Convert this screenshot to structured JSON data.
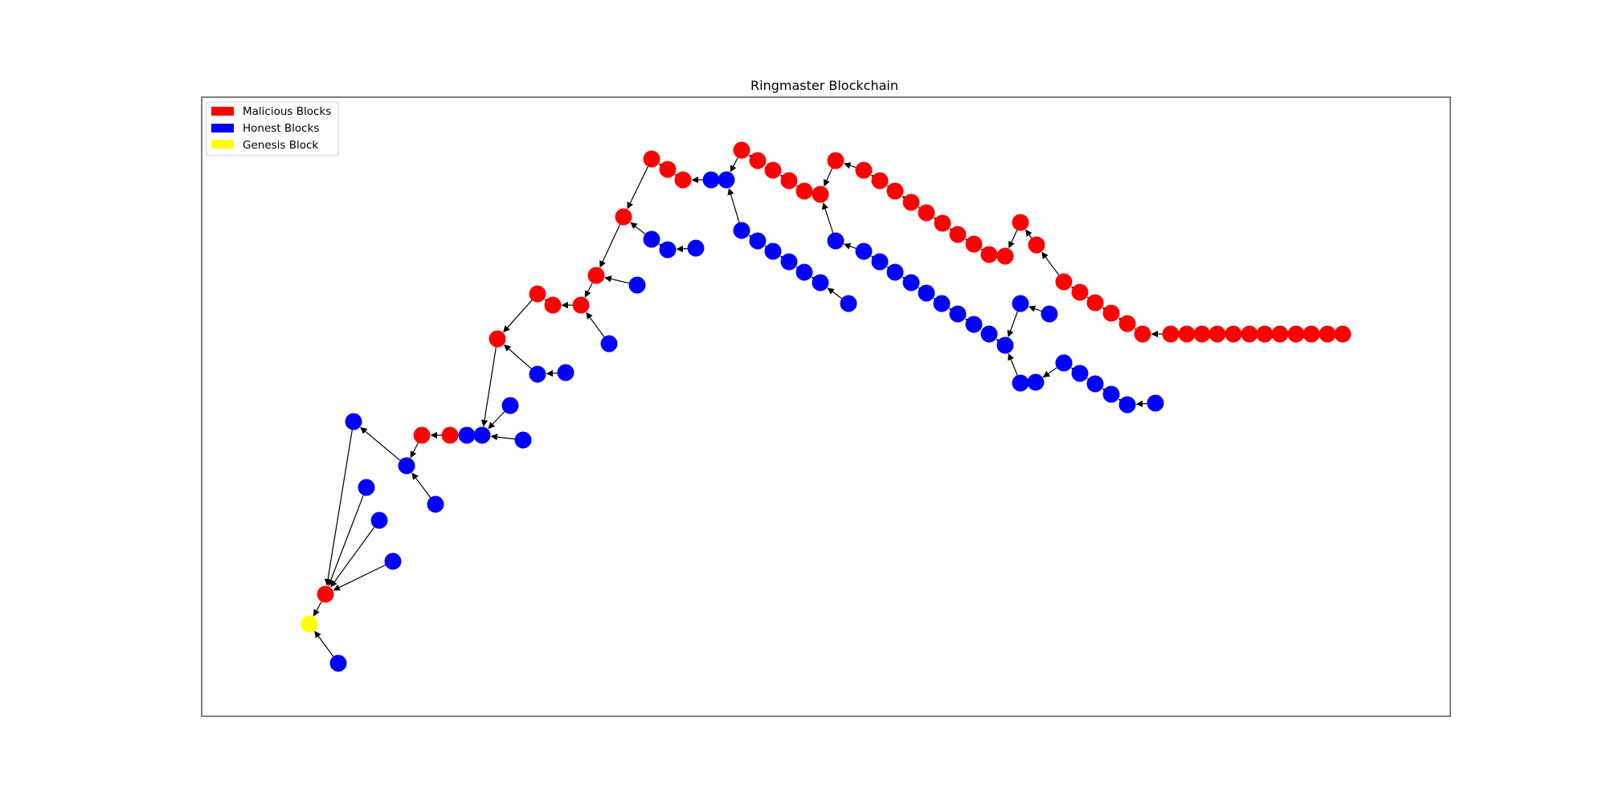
{
  "title": "Ringmaster Blockchain",
  "colors": {
    "malicious": "#ff0000",
    "honest": "#0000ff",
    "genesis": "#ffff00",
    "edge": "#000000",
    "axes": "#000000",
    "legend_border": "#cccccc"
  },
  "legend": {
    "placement": "upper-left",
    "items": [
      {
        "label": "Malicious Blocks",
        "type": "malicious"
      },
      {
        "label": "Honest Blocks",
        "type": "honest"
      },
      {
        "label": "Genesis Block",
        "type": "genesis"
      }
    ]
  },
  "graph": {
    "nodes": [
      {
        "id": "G",
        "type": "genesis"
      },
      {
        "id": "H0",
        "type": "honest"
      },
      {
        "id": "M0",
        "type": "malicious"
      },
      {
        "id": "H1",
        "type": "honest"
      },
      {
        "id": "H2",
        "type": "honest"
      },
      {
        "id": "H3",
        "type": "honest"
      },
      {
        "id": "H4",
        "type": "honest"
      },
      {
        "id": "H5",
        "type": "honest"
      },
      {
        "id": "H6",
        "type": "honest"
      },
      {
        "id": "M1",
        "type": "malicious"
      },
      {
        "id": "M2",
        "type": "malicious"
      },
      {
        "id": "H7",
        "type": "honest"
      },
      {
        "id": "H8",
        "type": "honest"
      },
      {
        "id": "H9",
        "type": "honest"
      },
      {
        "id": "H10",
        "type": "honest"
      },
      {
        "id": "M3",
        "type": "malicious"
      },
      {
        "id": "H11",
        "type": "honest"
      },
      {
        "id": "H12",
        "type": "honest"
      },
      {
        "id": "M4",
        "type": "malicious"
      },
      {
        "id": "M5",
        "type": "malicious"
      },
      {
        "id": "M6",
        "type": "malicious"
      },
      {
        "id": "H13",
        "type": "honest"
      },
      {
        "id": "M7",
        "type": "malicious"
      },
      {
        "id": "H14",
        "type": "honest"
      },
      {
        "id": "M8",
        "type": "malicious"
      },
      {
        "id": "H15",
        "type": "honest"
      },
      {
        "id": "H16",
        "type": "honest"
      },
      {
        "id": "H17",
        "type": "honest"
      },
      {
        "id": "M9",
        "type": "malicious"
      },
      {
        "id": "M10",
        "type": "malicious"
      },
      {
        "id": "M11",
        "type": "malicious"
      },
      {
        "id": "H18",
        "type": "honest"
      },
      {
        "id": "H19",
        "type": "honest"
      },
      {
        "id": "M12",
        "type": "malicious"
      },
      {
        "id": "M13",
        "type": "malicious"
      },
      {
        "id": "M14",
        "type": "malicious"
      },
      {
        "id": "M15",
        "type": "malicious"
      },
      {
        "id": "M16",
        "type": "malicious"
      },
      {
        "id": "M17",
        "type": "malicious"
      },
      {
        "id": "M18",
        "type": "malicious"
      },
      {
        "id": "M19",
        "type": "malicious"
      },
      {
        "id": "M20",
        "type": "malicious"
      },
      {
        "id": "M21",
        "type": "malicious"
      },
      {
        "id": "M22",
        "type": "malicious"
      },
      {
        "id": "M23",
        "type": "malicious"
      },
      {
        "id": "M24",
        "type": "malicious"
      },
      {
        "id": "M25",
        "type": "malicious"
      },
      {
        "id": "M26",
        "type": "malicious"
      },
      {
        "id": "M27",
        "type": "malicious"
      },
      {
        "id": "M28",
        "type": "malicious"
      },
      {
        "id": "M29",
        "type": "malicious"
      },
      {
        "id": "M30",
        "type": "malicious"
      },
      {
        "id": "M31",
        "type": "malicious"
      },
      {
        "id": "M32",
        "type": "malicious"
      },
      {
        "id": "M33",
        "type": "malicious"
      },
      {
        "id": "M34",
        "type": "malicious"
      },
      {
        "id": "M35",
        "type": "malicious"
      },
      {
        "id": "M36",
        "type": "malicious"
      },
      {
        "id": "M37",
        "type": "malicious"
      },
      {
        "id": "M38",
        "type": "malicious"
      },
      {
        "id": "M39",
        "type": "malicious"
      },
      {
        "id": "M40",
        "type": "malicious"
      },
      {
        "id": "M41",
        "type": "malicious"
      },
      {
        "id": "M42",
        "type": "malicious"
      },
      {
        "id": "M43",
        "type": "malicious"
      },
      {
        "id": "M44",
        "type": "malicious"
      },
      {
        "id": "M45",
        "type": "malicious"
      },
      {
        "id": "M46",
        "type": "malicious"
      },
      {
        "id": "M47",
        "type": "malicious"
      },
      {
        "id": "M48",
        "type": "malicious"
      },
      {
        "id": "H20",
        "type": "honest"
      },
      {
        "id": "H21",
        "type": "honest"
      },
      {
        "id": "H22",
        "type": "honest"
      },
      {
        "id": "H23",
        "type": "honest"
      },
      {
        "id": "H24",
        "type": "honest"
      },
      {
        "id": "H25",
        "type": "honest"
      },
      {
        "id": "H26",
        "type": "honest"
      },
      {
        "id": "H27",
        "type": "honest"
      },
      {
        "id": "H28",
        "type": "honest"
      },
      {
        "id": "H29",
        "type": "honest"
      },
      {
        "id": "H30",
        "type": "honest"
      },
      {
        "id": "H31",
        "type": "honest"
      },
      {
        "id": "H32",
        "type": "honest"
      },
      {
        "id": "H33",
        "type": "honest"
      },
      {
        "id": "H34",
        "type": "honest"
      },
      {
        "id": "H35",
        "type": "honest"
      },
      {
        "id": "H36",
        "type": "honest"
      },
      {
        "id": "H37",
        "type": "honest"
      },
      {
        "id": "H38",
        "type": "honest"
      },
      {
        "id": "H39",
        "type": "honest"
      },
      {
        "id": "H40",
        "type": "honest"
      },
      {
        "id": "H41",
        "type": "honest"
      },
      {
        "id": "H42",
        "type": "honest"
      },
      {
        "id": "H43",
        "type": "honest"
      },
      {
        "id": "H44",
        "type": "honest"
      },
      {
        "id": "H45",
        "type": "honest"
      },
      {
        "id": "H46",
        "type": "honest"
      },
      {
        "id": "H47",
        "type": "honest"
      },
      {
        "id": "H48",
        "type": "honest"
      }
    ],
    "edges": [
      [
        "H0",
        "G"
      ],
      [
        "M0",
        "G"
      ],
      [
        "H1",
        "M0"
      ],
      [
        "H2",
        "M0"
      ],
      [
        "H3",
        "M0"
      ],
      [
        "H4",
        "M0"
      ],
      [
        "H5",
        "H1"
      ],
      [
        "H6",
        "H5"
      ],
      [
        "M1",
        "H5"
      ],
      [
        "M2",
        "M1"
      ],
      [
        "H7",
        "M2"
      ],
      [
        "H8",
        "H7"
      ],
      [
        "H9",
        "H8"
      ],
      [
        "H10",
        "H8"
      ],
      [
        "M3",
        "H8"
      ],
      [
        "H11",
        "M3"
      ],
      [
        "H12",
        "H11"
      ],
      [
        "M4",
        "M3"
      ],
      [
        "M5",
        "M4"
      ],
      [
        "M6",
        "M5"
      ],
      [
        "H13",
        "M6"
      ],
      [
        "M7",
        "M6"
      ],
      [
        "H14",
        "M7"
      ],
      [
        "M8",
        "M7"
      ],
      [
        "H15",
        "M8"
      ],
      [
        "H16",
        "H15"
      ],
      [
        "H17",
        "H16"
      ],
      [
        "M9",
        "M8"
      ],
      [
        "M10",
        "M9"
      ],
      [
        "M11",
        "M10"
      ],
      [
        "H18",
        "M11"
      ],
      [
        "H19",
        "H18"
      ],
      [
        "M12",
        "H19"
      ],
      [
        "M13",
        "M12"
      ],
      [
        "M14",
        "M13"
      ],
      [
        "M15",
        "M14"
      ],
      [
        "M16",
        "M15"
      ],
      [
        "M17",
        "M16"
      ],
      [
        "M18",
        "M17"
      ],
      [
        "M19",
        "M18"
      ],
      [
        "M20",
        "M19"
      ],
      [
        "M21",
        "M20"
      ],
      [
        "M22",
        "M21"
      ],
      [
        "M23",
        "M22"
      ],
      [
        "M24",
        "M23"
      ],
      [
        "M25",
        "M24"
      ],
      [
        "M26",
        "M25"
      ],
      [
        "M27",
        "M26"
      ],
      [
        "M28",
        "M27"
      ],
      [
        "M29",
        "M28"
      ],
      [
        "M30",
        "M29"
      ],
      [
        "M31",
        "M30"
      ],
      [
        "M32",
        "M31"
      ],
      [
        "M33",
        "M32"
      ],
      [
        "M34",
        "M33"
      ],
      [
        "M35",
        "M34"
      ],
      [
        "M36",
        "M35"
      ],
      [
        "M37",
        "M36"
      ],
      [
        "M38",
        "M37"
      ],
      [
        "M39",
        "M38"
      ],
      [
        "M40",
        "M39"
      ],
      [
        "M41",
        "M40"
      ],
      [
        "M42",
        "M41"
      ],
      [
        "M43",
        "M42"
      ],
      [
        "M44",
        "M43"
      ],
      [
        "M45",
        "M44"
      ],
      [
        "M46",
        "M45"
      ],
      [
        "M47",
        "M46"
      ],
      [
        "M48",
        "M47"
      ],
      [
        "H20",
        "H19"
      ],
      [
        "H21",
        "H20"
      ],
      [
        "H22",
        "H21"
      ],
      [
        "H23",
        "H22"
      ],
      [
        "H24",
        "H23"
      ],
      [
        "H25",
        "H24"
      ],
      [
        "H26",
        "H25"
      ],
      [
        "H27",
        "M17"
      ],
      [
        "H28",
        "H27"
      ],
      [
        "H29",
        "H28"
      ],
      [
        "H30",
        "H29"
      ],
      [
        "H31",
        "H30"
      ],
      [
        "H32",
        "H31"
      ],
      [
        "H33",
        "H32"
      ],
      [
        "H34",
        "H33"
      ],
      [
        "H35",
        "H34"
      ],
      [
        "H36",
        "H35"
      ],
      [
        "H37",
        "H36"
      ],
      [
        "H38",
        "H37"
      ],
      [
        "H39",
        "H38"
      ],
      [
        "H40",
        "H37"
      ],
      [
        "H41",
        "H40"
      ],
      [
        "H42",
        "H41"
      ],
      [
        "H43",
        "H42"
      ],
      [
        "H44",
        "H43"
      ],
      [
        "H45",
        "H44"
      ],
      [
        "H46",
        "H45"
      ],
      [
        "H47",
        "H46"
      ],
      [
        "H48",
        "H47"
      ]
    ]
  }
}
